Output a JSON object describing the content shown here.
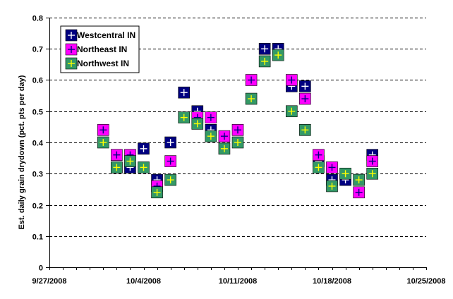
{
  "chart_data": {
    "type": "scatter",
    "title": "",
    "xlabel": "",
    "ylabel": "Est. daily grain drydown (pct. pts per day)",
    "ylim": [
      0,
      0.8
    ],
    "yticks": [
      "0",
      "0.1",
      "0.2",
      "0.3",
      "0.4",
      "0.5",
      "0.6",
      "0.7",
      "0.8"
    ],
    "xlim_days": [
      0,
      28
    ],
    "xticks": [
      {
        "day": 0,
        "label": "9/27/2008"
      },
      {
        "day": 7,
        "label": "10/4/2008"
      },
      {
        "day": 14,
        "label": "10/11/2008"
      },
      {
        "day": 21,
        "label": "10/18/2008"
      },
      {
        "day": 28,
        "label": "10/25/2008"
      }
    ],
    "grid": "horizontal-dashed",
    "legend_position": "top-left",
    "series": [
      {
        "name": "Westcentral IN",
        "color": "#000080",
        "cross_color": "#ffffff",
        "points": [
          {
            "x": 5,
            "y": 0.32
          },
          {
            "x": 6,
            "y": 0.32
          },
          {
            "x": 7,
            "y": 0.38
          },
          {
            "x": 8,
            "y": 0.28
          },
          {
            "x": 9,
            "y": 0.4
          },
          {
            "x": 10,
            "y": 0.56
          },
          {
            "x": 11,
            "y": 0.5
          },
          {
            "x": 12,
            "y": 0.44
          },
          {
            "x": 16,
            "y": 0.7
          },
          {
            "x": 17,
            "y": 0.7
          },
          {
            "x": 18,
            "y": 0.58
          },
          {
            "x": 19,
            "y": 0.58
          },
          {
            "x": 20,
            "y": 0.34
          },
          {
            "x": 21,
            "y": 0.28
          },
          {
            "x": 22,
            "y": 0.28
          },
          {
            "x": 24,
            "y": 0.36
          }
        ]
      },
      {
        "name": "Northeast IN",
        "color": "#ff00ff",
        "cross_color": "#000080",
        "points": [
          {
            "x": 4,
            "y": 0.44
          },
          {
            "x": 5,
            "y": 0.36
          },
          {
            "x": 6,
            "y": 0.36
          },
          {
            "x": 8,
            "y": 0.26
          },
          {
            "x": 9,
            "y": 0.34
          },
          {
            "x": 11,
            "y": 0.48
          },
          {
            "x": 12,
            "y": 0.48
          },
          {
            "x": 13,
            "y": 0.42
          },
          {
            "x": 14,
            "y": 0.44
          },
          {
            "x": 15,
            "y": 0.6
          },
          {
            "x": 18,
            "y": 0.6
          },
          {
            "x": 19,
            "y": 0.54
          },
          {
            "x": 20,
            "y": 0.36
          },
          {
            "x": 21,
            "y": 0.32
          },
          {
            "x": 23,
            "y": 0.24
          },
          {
            "x": 24,
            "y": 0.34
          }
        ]
      },
      {
        "name": "Northwest IN",
        "color": "#339966",
        "cross_color": "#ffff00",
        "points": [
          {
            "x": 4,
            "y": 0.4
          },
          {
            "x": 5,
            "y": 0.32
          },
          {
            "x": 6,
            "y": 0.34
          },
          {
            "x": 7,
            "y": 0.32
          },
          {
            "x": 8,
            "y": 0.24
          },
          {
            "x": 9,
            "y": 0.28
          },
          {
            "x": 10,
            "y": 0.48
          },
          {
            "x": 11,
            "y": 0.46
          },
          {
            "x": 12,
            "y": 0.42
          },
          {
            "x": 13,
            "y": 0.38
          },
          {
            "x": 14,
            "y": 0.4
          },
          {
            "x": 15,
            "y": 0.54
          },
          {
            "x": 16,
            "y": 0.66
          },
          {
            "x": 17,
            "y": 0.68
          },
          {
            "x": 18,
            "y": 0.5
          },
          {
            "x": 19,
            "y": 0.44
          },
          {
            "x": 20,
            "y": 0.32
          },
          {
            "x": 21,
            "y": 0.26
          },
          {
            "x": 22,
            "y": 0.3
          },
          {
            "x": 23,
            "y": 0.28
          },
          {
            "x": 24,
            "y": 0.3
          }
        ]
      }
    ]
  }
}
